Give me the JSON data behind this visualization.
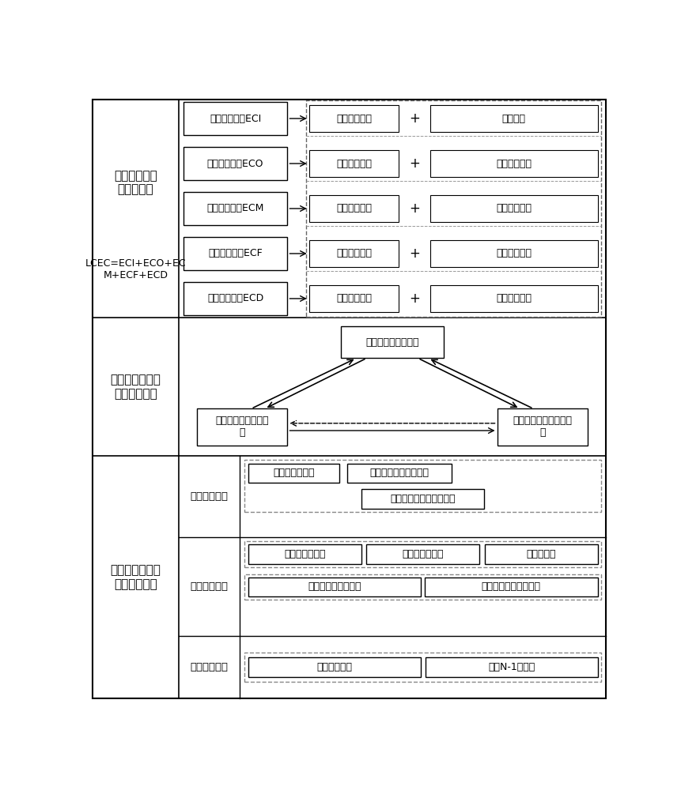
{
  "bg_color": "#ffffff",
  "border_color": "#000000",
  "text_color": "#000000",
  "section1_label": "设备全寿命周\n期能耗模型",
  "section1_sublabel": "LCEC=ECI+ECO+EC\nM+ECF+ECD",
  "section2_label": "设备全寿命周期\n能耗曲线分析",
  "section3_label": "设备全寿命周期\n能耗评价指标",
  "row1_left": "建设投资能耗ECI",
  "row2_left": "设备运行能耗ECO",
  "row3_left": "维护检修能耗ECM",
  "row4_left": "故障检修能耗ECF",
  "row5_left": "报废退役能耗ECD",
  "row1_mid": "安装调试能耗",
  "row1_right": "制造能耗",
  "row2_mid": "本体运行能耗",
  "row2_right": "辅助设备能耗",
  "row3_mid": "解体检修能耗",
  "row3_right": "常规维护能耗",
  "row4_mid": "故障维修能耗",
  "row4_right": "故障损失能耗",
  "row5_mid": "设备报废能耗",
  "row5_right": "设备处理能耗",
  "curve_top": "全寿命周期能耗曲线",
  "curve_bl": "全寿命周期能耗累曲\n线",
  "curve_br": "全寿命周期能耗强度曲\n线",
  "invest_label": "投资能耗指标",
  "invest_b1": "设备投资能耗比",
  "invest_b2": "节能新型设备投资比重",
  "invest_b3": "全寿命周期设备期望能耗",
  "ops_label": "运维能耗指标",
  "ops_b1": "设备时间工作率",
  "ops_b2": "设备性能工作率",
  "ops_b3": "设备损耗率",
  "ops_b4": "设备定检维护完成率",
  "ops_b5": "主变、线路设备利用率",
  "fault_label": "故障能耗指标",
  "fault_b1": "设备故障频次",
  "fault_b2": "设备N-1通过率"
}
